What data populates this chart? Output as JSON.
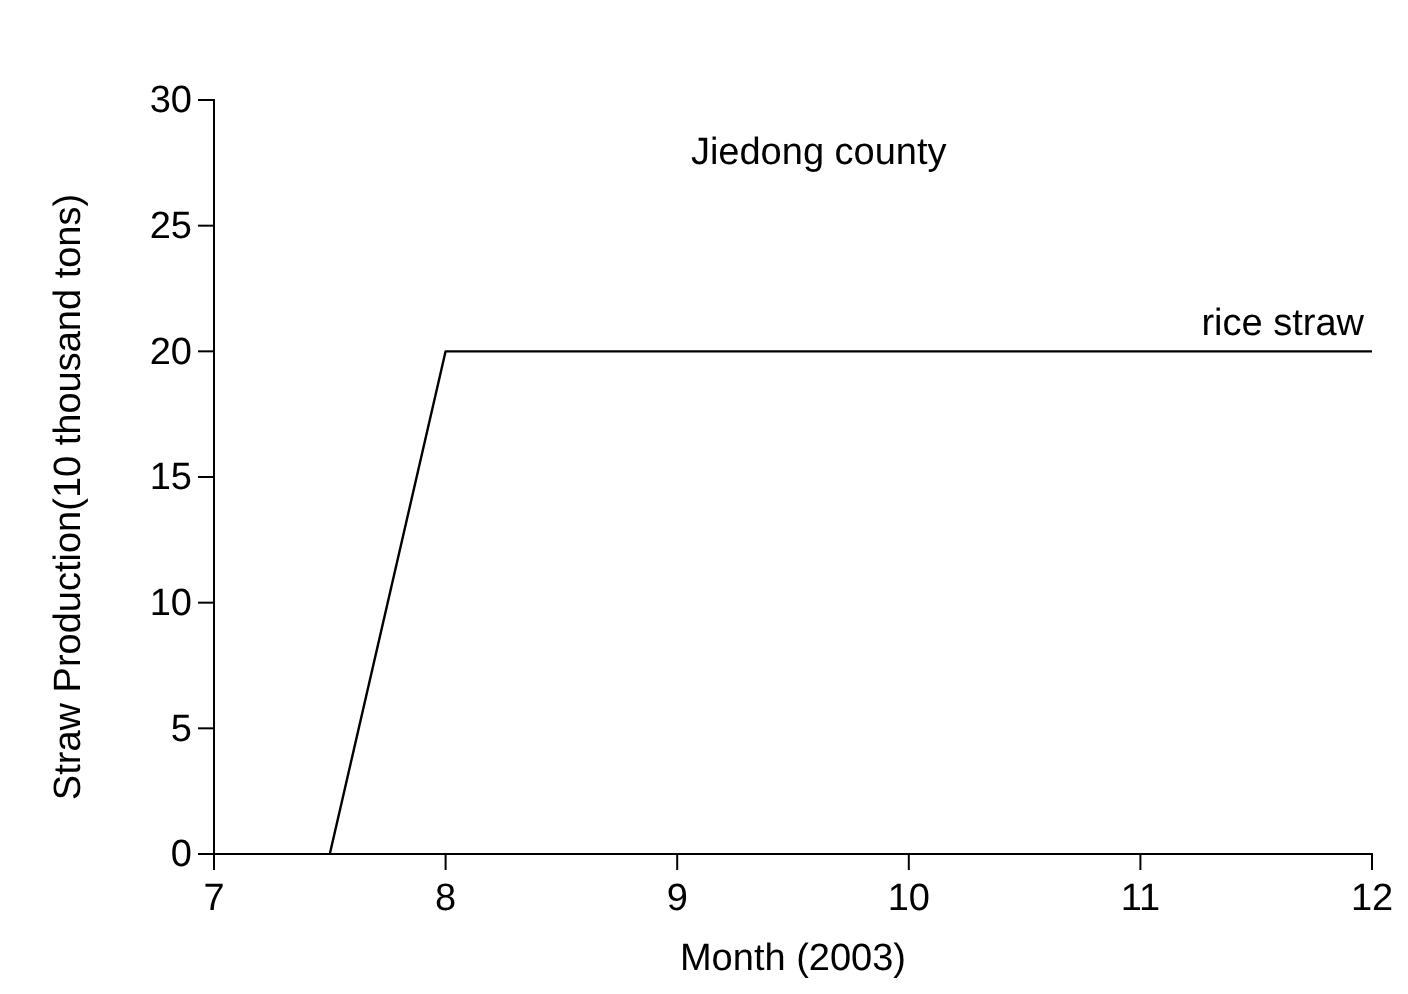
{
  "chart_data": {
    "type": "line",
    "title": "Jiedong county",
    "xlabel": "Month (2003)",
    "ylabel": "Straw Production(10 thousand tons)",
    "x": [
      7.5,
      8,
      12
    ],
    "series": [
      {
        "name": "rice straw",
        "color": "#000000",
        "values": [
          0,
          20,
          20
        ]
      }
    ],
    "xlim": [
      7,
      12
    ],
    "xticks": [
      7,
      8,
      9,
      10,
      11,
      12
    ],
    "ylim": [
      0,
      30
    ],
    "yticks": [
      0,
      5,
      10,
      15,
      20,
      25,
      30
    ],
    "grid": false,
    "legend": false,
    "marker": "none",
    "line_style": "solid"
  }
}
